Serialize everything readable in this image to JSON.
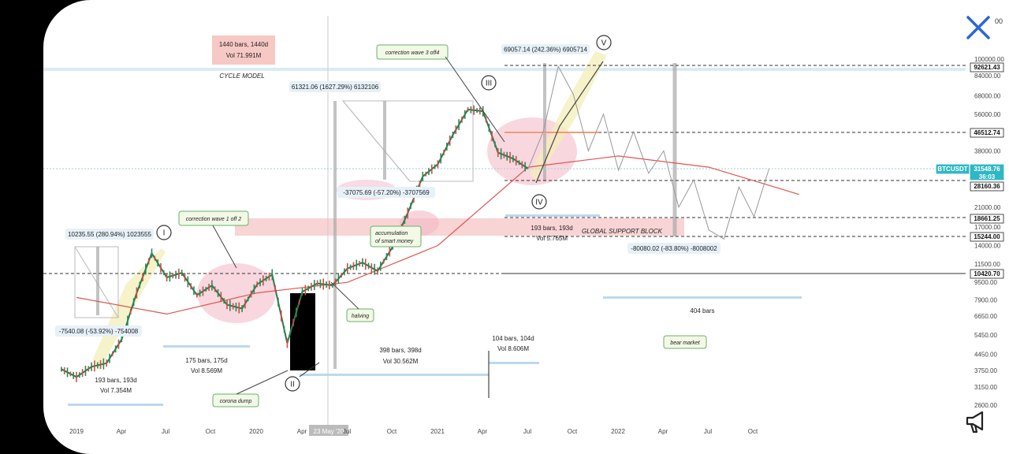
{
  "ui": {
    "topright_fragment": "00"
  },
  "chart_data": {
    "type": "line",
    "title": "",
    "symbol": "BTCUSDT",
    "xaxis_ticks": [
      "2019",
      "Apr",
      "Jul",
      "Oct",
      "2020",
      "Apr",
      "23 May '20",
      "Jul",
      "Oct",
      "2021",
      "Apr",
      "Jul",
      "Oct",
      "2022",
      "Apr",
      "Jul",
      "Oct"
    ],
    "yaxis_scale": "log",
    "yaxis_ticks": [
      "100000.00",
      "84000.00",
      "68000.00",
      "56000.00",
      "38000.00",
      "21000.00",
      "17000.00",
      "14000.00",
      "11500.00",
      "9500.00",
      "7900.00",
      "6650.00",
      "5450.00",
      "4450.00",
      "3750.00",
      "3150.00",
      "2600.00"
    ],
    "price_labels": [
      {
        "text": "92621.43",
        "value": 92621.43
      },
      {
        "text": "46512.74",
        "value": 46512.74
      },
      {
        "text": "BTCUSDT",
        "value": 31548.76,
        "highlight": true
      },
      {
        "text": "31548.76",
        "value": 31548.76,
        "highlight": true
      },
      {
        "text": "36:03",
        "value": 31548.76,
        "highlight": true
      },
      {
        "text": "28160.36",
        "value": 28160.36
      },
      {
        "text": "18661.25",
        "value": 18661.25
      },
      {
        "text": "15244.00",
        "value": 15244.0
      },
      {
        "text": "10420.70",
        "value": 10420.7
      }
    ],
    "annotations": {
      "bars_1440": "1440 bars, 1440d",
      "vol_1440": "Vol 71.991M",
      "cycle_model": "CYCLE MODEL",
      "measure_v": "69057.14 (242.36%) 6905714",
      "measure_iii_up": "61321.06 (1627.29%) 6132106",
      "correction3": "correction wave 3 off4",
      "measure_i_up": "10235.55 (280.94%) 1023555",
      "correction1": "correction wave 1 off 2",
      "measure_i_down": "-7540.08 (-53.92%) -754008",
      "measure_iii_down": "-37075.69 (-57.20%) -3707569",
      "accumulation": "accumulation of smart money",
      "bars_193_b": "193 bars, 193d",
      "vol_193_b": "Vol 5.765M",
      "global_support": "GLOBAL SUPPORT BLOCK",
      "measure_bear": "-80080.02 (-83.80%) -8008002",
      "halving": "halving",
      "bars_404": "404 bars",
      "bear_market": "bear market",
      "bars_193_a": "193 bars, 193d",
      "vol_193_a": "Vol 7.354M",
      "bars_175": "175 bars, 175d",
      "vol_175": "Vol 8.569M",
      "bars_398": "398 bars, 398d",
      "vol_398": "Vol 30.562M",
      "bars_104": "104 bars, 104d",
      "vol_104": "Vol 8.606M",
      "corona": "corona dump",
      "wave_I": "I",
      "wave_II": "II",
      "wave_III": "III",
      "wave_IV": "IV",
      "wave_V": "V"
    },
    "price_series": [
      [
        "2018-12",
        3800
      ],
      [
        "2019-01",
        3500
      ],
      [
        "2019-02",
        3900
      ],
      [
        "2019-03",
        4050
      ],
      [
        "2019-04",
        5200
      ],
      [
        "2019-05",
        8500
      ],
      [
        "2019-06",
        12900
      ],
      [
        "2019-07",
        10000
      ],
      [
        "2019-08",
        10500
      ],
      [
        "2019-09",
        8300
      ],
      [
        "2019-10",
        9200
      ],
      [
        "2019-11",
        7500
      ],
      [
        "2019-12",
        7200
      ],
      [
        "2020-01",
        9300
      ],
      [
        "2020-02",
        10300
      ],
      [
        "2020-03",
        5000
      ],
      [
        "2020-04",
        8600
      ],
      [
        "2020-05",
        9400
      ],
      [
        "2020-06",
        9200
      ],
      [
        "2020-07",
        11000
      ],
      [
        "2020-08",
        11700
      ],
      [
        "2020-09",
        10700
      ],
      [
        "2020-10",
        13800
      ],
      [
        "2020-11",
        19700
      ],
      [
        "2020-12",
        29000
      ],
      [
        "2021-01",
        33000
      ],
      [
        "2021-02",
        45000
      ],
      [
        "2021-03",
        58800
      ],
      [
        "2021-04",
        57700
      ],
      [
        "2021-05",
        37300
      ],
      [
        "2021-06",
        35000
      ],
      [
        "2021-07",
        31500
      ]
    ],
    "projection_series": [
      [
        "2021-07",
        31500
      ],
      [
        "2021-08",
        46500
      ],
      [
        "2021-09",
        92600
      ],
      [
        "2021-10",
        69000
      ],
      [
        "2021-11",
        38000
      ],
      [
        "2021-12",
        56000
      ],
      [
        "2022-01",
        31000
      ],
      [
        "2022-02",
        46500
      ],
      [
        "2022-03",
        30000
      ],
      [
        "2022-04",
        38000
      ],
      [
        "2022-05",
        21000
      ],
      [
        "2022-06",
        28000
      ],
      [
        "2022-07",
        16500
      ],
      [
        "2022-08",
        15000
      ],
      [
        "2022-09",
        26000
      ],
      [
        "2022-10",
        19000
      ],
      [
        "2022-11",
        31500
      ]
    ],
    "moving_average": [
      [
        "2019-01",
        8100
      ],
      [
        "2019-07",
        6800
      ],
      [
        "2020-01",
        8500
      ],
      [
        "2020-07",
        9500
      ],
      [
        "2021-01",
        14000
      ],
      [
        "2021-07",
        32000
      ],
      [
        "2022-01",
        36000
      ],
      [
        "2022-07",
        32000
      ],
      [
        "2023-01",
        24000
      ]
    ]
  }
}
